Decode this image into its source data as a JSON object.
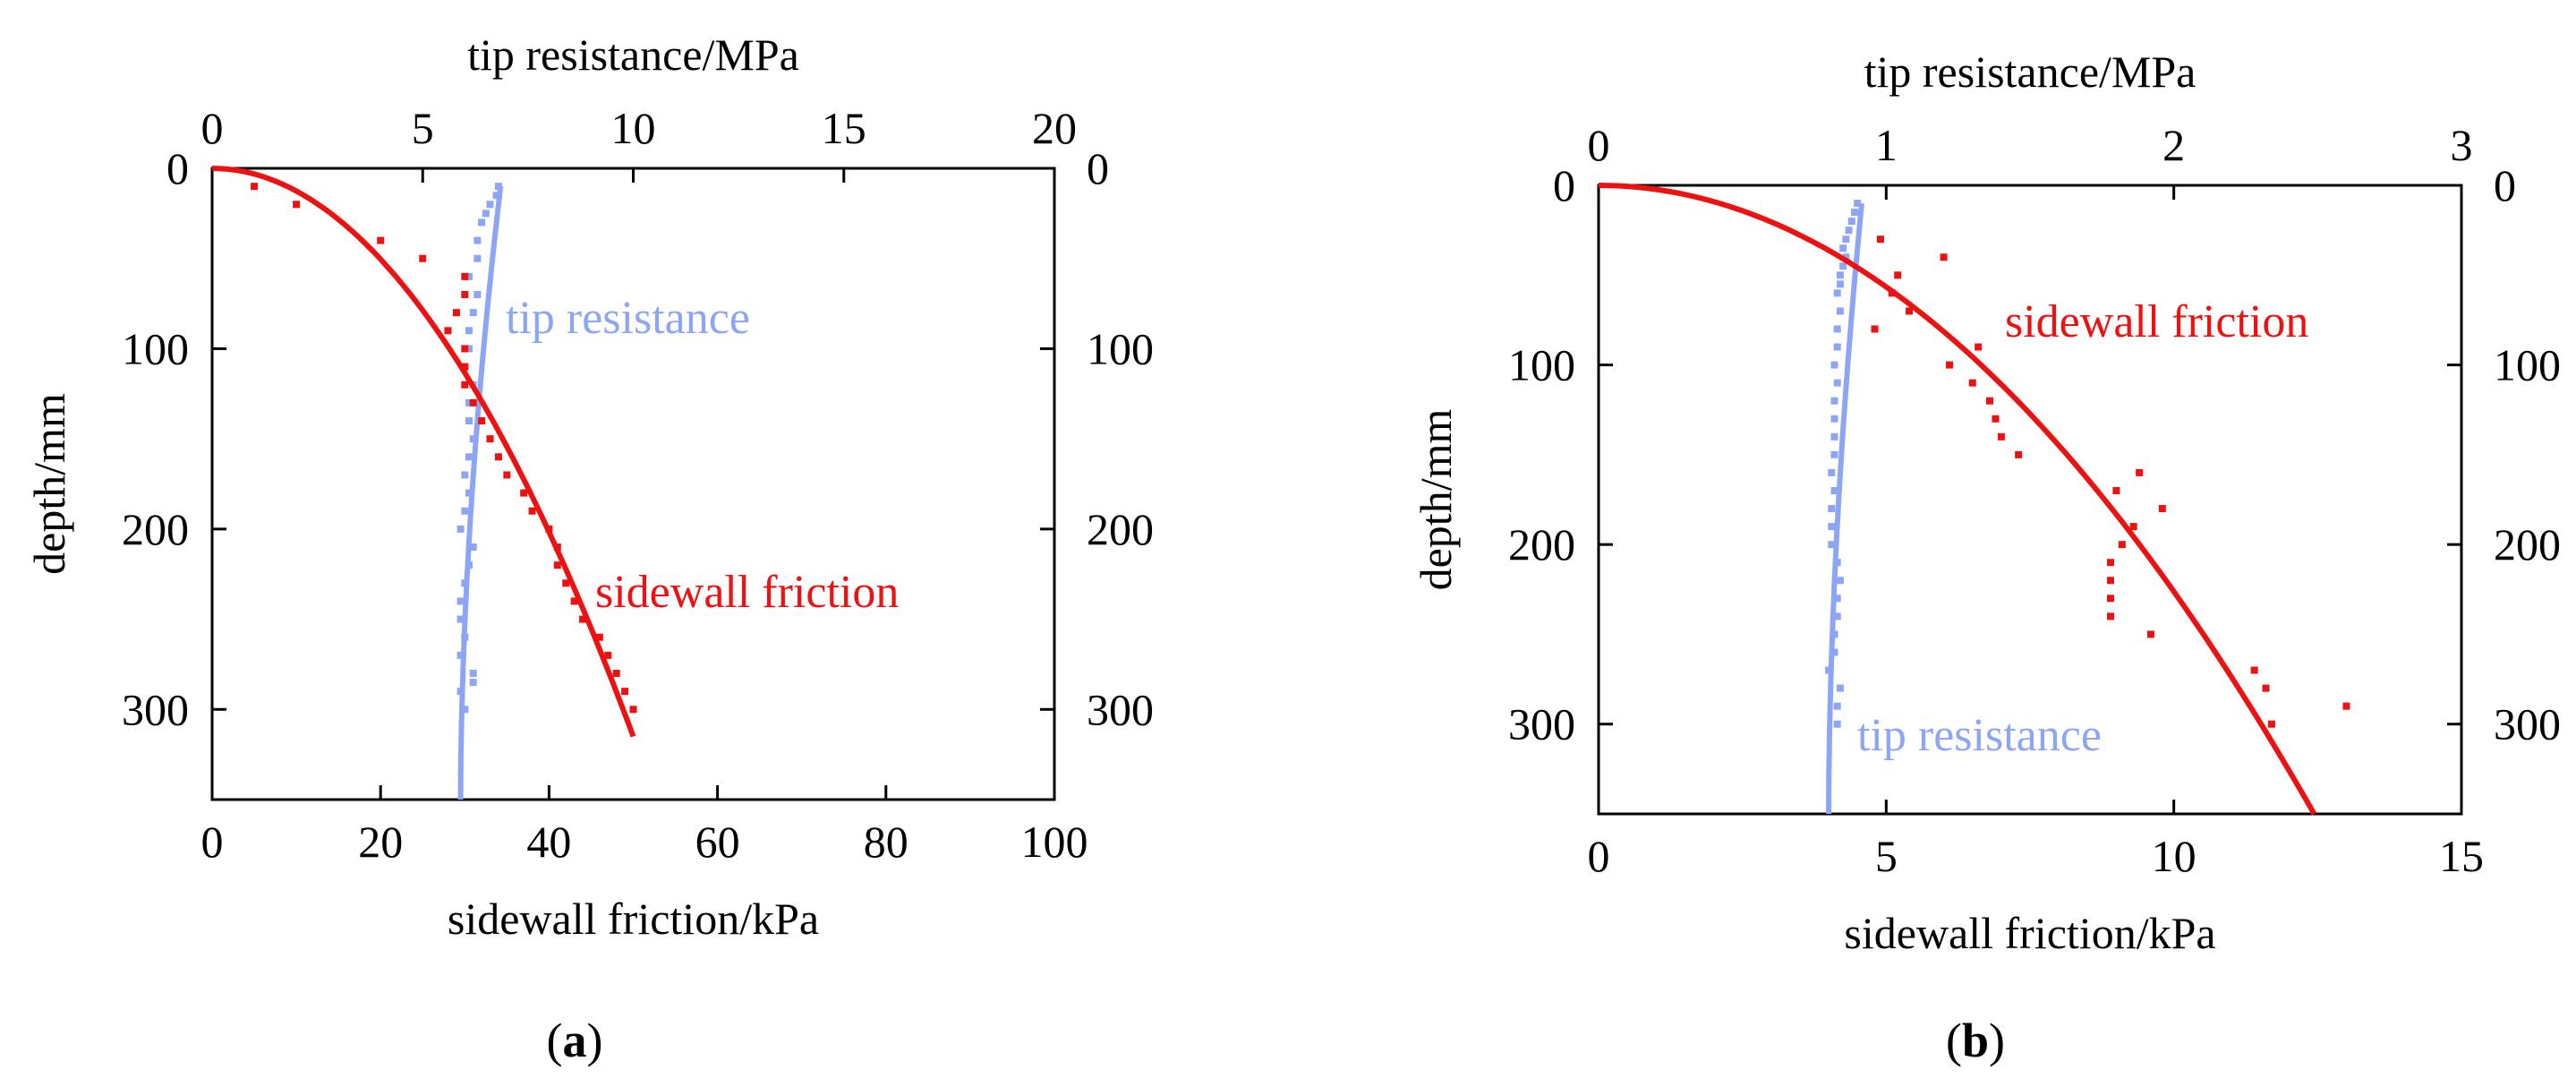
{
  "chart_data": [
    {
      "type": "scatter",
      "panel_label": "a",
      "title": "",
      "top_axis": {
        "label": "tip resistance/MPa",
        "range": [
          0,
          20
        ],
        "ticks": [
          0,
          5,
          10,
          15,
          20
        ]
      },
      "bottom_axis": {
        "label": "sidewall friction/kPa",
        "range": [
          0,
          100
        ],
        "ticks": [
          0,
          20,
          40,
          60,
          80,
          100
        ]
      },
      "left_axis": {
        "label": "depth/mm",
        "range": [
          0,
          350
        ],
        "inverted": true,
        "ticks": [
          0,
          100,
          200,
          300
        ]
      },
      "right_axis": {
        "label": "",
        "range": [
          0,
          350
        ],
        "inverted": true,
        "ticks": [
          0,
          100,
          200,
          300
        ]
      },
      "series": [
        {
          "name": "tip resistance",
          "axis": "top",
          "color": "#8ea5f5",
          "marker": "square",
          "points": [
            [
              6.8,
              10
            ],
            [
              6.75,
              15
            ],
            [
              6.6,
              20
            ],
            [
              6.5,
              25
            ],
            [
              6.4,
              30
            ],
            [
              6.3,
              40
            ],
            [
              6.3,
              50
            ],
            [
              6.1,
              60
            ],
            [
              6.3,
              70
            ],
            [
              6.2,
              80
            ],
            [
              6.1,
              90
            ],
            [
              6.1,
              100
            ],
            [
              6.0,
              110
            ],
            [
              6.2,
              120
            ],
            [
              6.1,
              130
            ],
            [
              6.1,
              140
            ],
            [
              6.2,
              150
            ],
            [
              6.1,
              160
            ],
            [
              6.0,
              170
            ],
            [
              6.1,
              180
            ],
            [
              6.0,
              190
            ],
            [
              5.9,
              200
            ],
            [
              6.2,
              210
            ],
            [
              6.1,
              220
            ],
            [
              6.0,
              230
            ],
            [
              5.9,
              240
            ],
            [
              5.9,
              250
            ],
            [
              6.0,
              260
            ],
            [
              5.9,
              270
            ],
            [
              6.2,
              280
            ],
            [
              6.2,
              285
            ],
            [
              5.9,
              290
            ],
            [
              6.0,
              300
            ]
          ],
          "fit": {
            "x_top": 6.85,
            "x_bottom": 5.9,
            "depth_range": [
              10,
              350
            ]
          }
        },
        {
          "name": "sidewall friction",
          "axis": "bottom",
          "color": "#ee1111",
          "marker": "square",
          "points": [
            [
              5,
              10
            ],
            [
              10,
              20
            ],
            [
              20,
              40
            ],
            [
              25,
              50
            ],
            [
              30,
              60
            ],
            [
              30,
              70
            ],
            [
              29,
              80
            ],
            [
              28,
              90
            ],
            [
              30,
              100
            ],
            [
              30,
              110
            ],
            [
              30,
              120
            ],
            [
              31,
              130
            ],
            [
              32,
              140
            ],
            [
              33,
              150
            ],
            [
              34,
              160
            ],
            [
              35,
              170
            ],
            [
              37,
              180
            ],
            [
              38,
              190
            ],
            [
              40,
              200
            ],
            [
              41,
              210
            ],
            [
              41,
              220
            ],
            [
              42,
              230
            ],
            [
              43,
              240
            ],
            [
              44,
              250
            ],
            [
              46,
              260
            ],
            [
              47,
              270
            ],
            [
              48,
              280
            ],
            [
              49,
              290
            ],
            [
              50,
              300
            ]
          ],
          "fit": {
            "equation": "depth = 315 * (f / 50)^2",
            "f_range": [
              0,
              50
            ]
          }
        }
      ],
      "annotations": [
        {
          "text": "tip resistance",
          "series": "tip resistance"
        },
        {
          "text": "sidewall friction",
          "series": "sidewall friction"
        }
      ]
    },
    {
      "type": "scatter",
      "panel_label": "b",
      "title": "",
      "top_axis": {
        "label": "tip resistance/MPa",
        "range": [
          0,
          3
        ],
        "ticks": [
          0,
          1,
          2,
          3
        ]
      },
      "bottom_axis": {
        "label": "sidewall friction/kPa",
        "range": [
          0,
          15
        ],
        "ticks": [
          0,
          5,
          10,
          15
        ]
      },
      "left_axis": {
        "label": "depth/mm",
        "range": [
          0,
          350
        ],
        "inverted": true,
        "ticks": [
          0,
          100,
          200,
          300
        ]
      },
      "right_axis": {
        "label": "",
        "range": [
          0,
          350
        ],
        "inverted": true,
        "ticks": [
          0,
          100,
          200,
          300
        ]
      },
      "series": [
        {
          "name": "tip resistance",
          "axis": "top",
          "color": "#8ea5f5",
          "marker": "square",
          "points": [
            [
              0.9,
              10
            ],
            [
              0.89,
              15
            ],
            [
              0.88,
              20
            ],
            [
              0.87,
              25
            ],
            [
              0.86,
              30
            ],
            [
              0.85,
              35
            ],
            [
              0.86,
              40
            ],
            [
              0.85,
              45
            ],
            [
              0.84,
              50
            ],
            [
              0.84,
              55
            ],
            [
              0.83,
              60
            ],
            [
              0.84,
              70
            ],
            [
              0.83,
              80
            ],
            [
              0.83,
              90
            ],
            [
              0.82,
              100
            ],
            [
              0.83,
              110
            ],
            [
              0.82,
              120
            ],
            [
              0.82,
              130
            ],
            [
              0.82,
              140
            ],
            [
              0.82,
              150
            ],
            [
              0.81,
              160
            ],
            [
              0.82,
              170
            ],
            [
              0.81,
              180
            ],
            [
              0.81,
              190
            ],
            [
              0.81,
              200
            ],
            [
              0.83,
              210
            ],
            [
              0.84,
              220
            ],
            [
              0.83,
              230
            ],
            [
              0.83,
              240
            ],
            [
              0.82,
              250
            ],
            [
              0.82,
              260
            ],
            [
              0.8,
              270
            ],
            [
              0.84,
              280
            ],
            [
              0.83,
              290
            ],
            [
              0.83,
              300
            ]
          ],
          "fit": {
            "x_top": 0.915,
            "x_bottom": 0.8,
            "depth_range": [
              10,
              350
            ]
          }
        },
        {
          "name": "sidewall friction",
          "axis": "bottom",
          "color": "#ee1111",
          "marker": "square",
          "points": [
            [
              4.9,
              30
            ],
            [
              5.2,
              50
            ],
            [
              6.0,
              40
            ],
            [
              5.1,
              60
            ],
            [
              5.4,
              70
            ],
            [
              4.8,
              80
            ],
            [
              6.6,
              90
            ],
            [
              6.1,
              100
            ],
            [
              6.5,
              110
            ],
            [
              6.8,
              120
            ],
            [
              6.9,
              130
            ],
            [
              7.0,
              140
            ],
            [
              7.3,
              150
            ],
            [
              9.4,
              160
            ],
            [
              9.0,
              170
            ],
            [
              9.8,
              180
            ],
            [
              9.3,
              190
            ],
            [
              9.1,
              200
            ],
            [
              8.9,
              210
            ],
            [
              8.9,
              220
            ],
            [
              8.9,
              230
            ],
            [
              8.9,
              240
            ],
            [
              9.6,
              250
            ],
            [
              11.4,
              270
            ],
            [
              11.6,
              280
            ],
            [
              13.0,
              290
            ],
            [
              11.7,
              300
            ]
          ],
          "fit": {
            "equation": "depth = 350 * (f / 12.44)^2",
            "f_range": [
              0,
              12.44
            ]
          }
        }
      ],
      "annotations": [
        {
          "text": "sidewall friction",
          "series": "sidewall friction"
        },
        {
          "text": "tip resistance",
          "series": "tip resistance"
        }
      ]
    }
  ]
}
